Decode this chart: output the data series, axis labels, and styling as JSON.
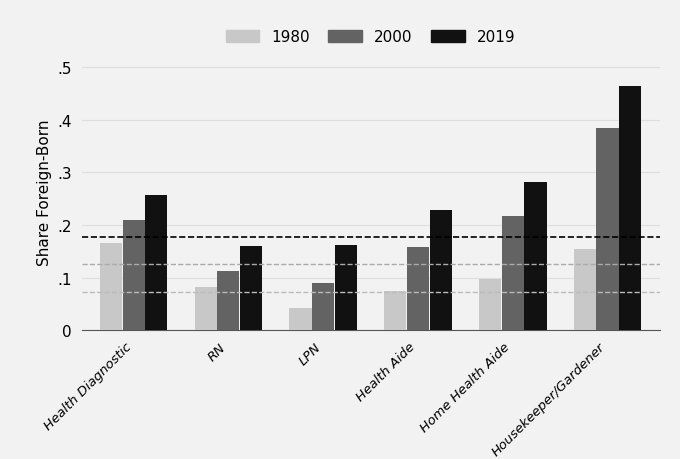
{
  "categories": [
    "Health Diagnostic",
    "RN",
    "LPN",
    "Health Aide",
    "Home Health Aide",
    "Housekeeper/Gardener"
  ],
  "years": [
    "1980",
    "2000",
    "2019"
  ],
  "values": {
    "1980": [
      0.165,
      0.082,
      0.043,
      0.075,
      0.097,
      0.155
    ],
    "2000": [
      0.21,
      0.113,
      0.09,
      0.158,
      0.218,
      0.384
    ],
    "2019": [
      0.257,
      0.16,
      0.162,
      0.228,
      0.282,
      0.465
    ]
  },
  "bar_colors": {
    "1980": "#c8c8c8",
    "2000": "#636363",
    "2019": "#111111"
  },
  "hline_black": 0.178,
  "hline_gray1": 0.125,
  "hline_gray2": 0.073,
  "ylabel": "Share Foreign-Born",
  "yticks": [
    0,
    0.1,
    0.2,
    0.3,
    0.4,
    0.5
  ],
  "ytick_labels": [
    "0",
    ".1",
    ".2",
    ".3",
    ".4",
    ".5"
  ],
  "ylim": [
    0,
    0.525
  ],
  "background_color": "#f2f2f2",
  "grid_color": "#dddddd",
  "bar_width": 0.24
}
